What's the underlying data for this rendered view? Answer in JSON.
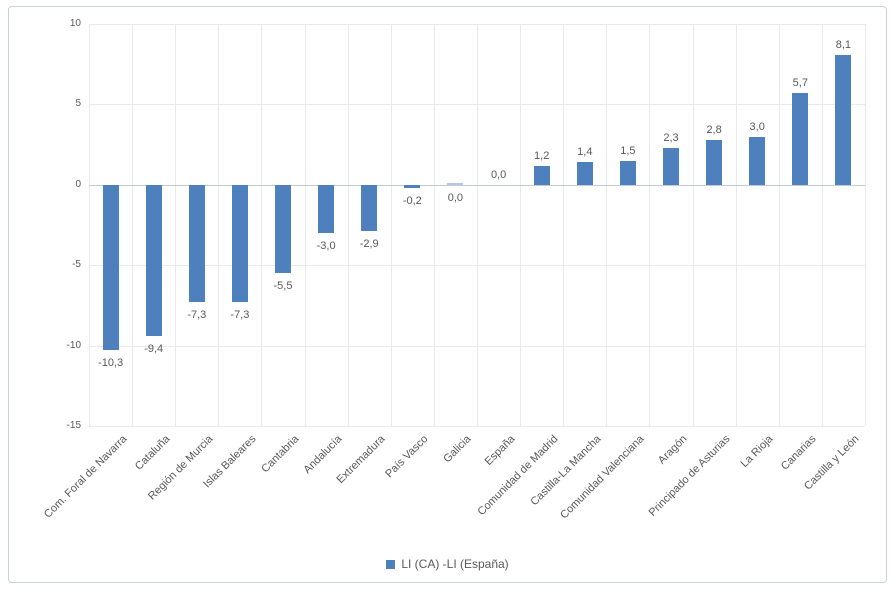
{
  "chart_data": {
    "type": "bar",
    "title": "",
    "legend_label": "LI (CA) -LI (España)",
    "legend_position": "bottom-center",
    "grid": true,
    "ylim": [
      -15,
      10
    ],
    "yticks": [
      10,
      5,
      0,
      -5,
      -10,
      -15
    ],
    "ytick_labels": [
      "10",
      "5",
      "0",
      "-5",
      "-10",
      "-15"
    ],
    "xlabel": "",
    "ylabel": "",
    "points": [
      {
        "category": "Com. Foral de Navarra",
        "value": -10.3,
        "label": "-10,3",
        "label_side": "below",
        "bar_style": "normal"
      },
      {
        "category": "Cataluña",
        "value": -9.4,
        "label": "-9,4",
        "label_side": "below",
        "bar_style": "normal"
      },
      {
        "category": "Región de Murcia",
        "value": -7.3,
        "label": "-7,3",
        "label_side": "below",
        "bar_style": "normal"
      },
      {
        "category": "Islas Baleares",
        "value": -7.3,
        "label": "-7,3",
        "label_side": "below",
        "bar_style": "normal"
      },
      {
        "category": "Cantabria",
        "value": -5.5,
        "label": "-5,5",
        "label_side": "below",
        "bar_style": "normal"
      },
      {
        "category": "Andalucía",
        "value": -3.0,
        "label": "-3,0",
        "label_side": "below",
        "bar_style": "normal"
      },
      {
        "category": "Extremadura",
        "value": -2.9,
        "label": "-2,9",
        "label_side": "below",
        "bar_style": "normal"
      },
      {
        "category": "País Vasco",
        "value": -0.2,
        "label": "-0,2",
        "label_side": "below",
        "bar_style": "normal"
      },
      {
        "category": "Galicia",
        "value": 0.0,
        "label": "0,0",
        "label_side": "below",
        "bar_style": "faint-sliver"
      },
      {
        "category": "España",
        "value": 0.0,
        "label": "0,0",
        "label_side": "above",
        "bar_style": "none"
      },
      {
        "category": "Comunidad de Madrid",
        "value": 1.2,
        "label": "1,2",
        "label_side": "above",
        "bar_style": "normal"
      },
      {
        "category": "Castilla-La Mancha",
        "value": 1.4,
        "label": "1,4",
        "label_side": "above",
        "bar_style": "normal"
      },
      {
        "category": "Comunidad Valenciana",
        "value": 1.5,
        "label": "1,5",
        "label_side": "above",
        "bar_style": "normal"
      },
      {
        "category": "Aragón",
        "value": 2.3,
        "label": "2,3",
        "label_side": "above",
        "bar_style": "normal"
      },
      {
        "category": "Principado de Asturias",
        "value": 2.8,
        "label": "2,8",
        "label_side": "above",
        "bar_style": "normal"
      },
      {
        "category": "La Rioja",
        "value": 3.0,
        "label": "3,0",
        "label_side": "above",
        "bar_style": "normal"
      },
      {
        "category": "Canarias",
        "value": 5.7,
        "label": "5,7",
        "label_side": "above",
        "bar_style": "normal"
      },
      {
        "category": "Castilla y León",
        "value": 8.1,
        "label": "8,1",
        "label_side": "above",
        "bar_style": "normal"
      }
    ]
  },
  "colors": {
    "bar": "#4e80bd",
    "bar_faint": "#b3c9e4",
    "gridline": "#e7e9ec",
    "axis_line": "#c4cad1",
    "text": "#595959",
    "frame_border": "#c9d2dc",
    "background": "#ffffff"
  }
}
